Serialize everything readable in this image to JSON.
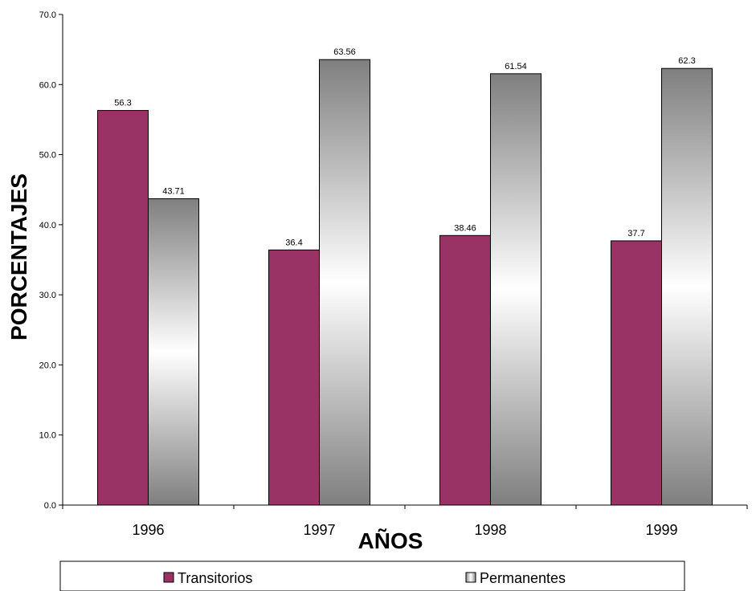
{
  "chart_data": {
    "type": "bar",
    "categories": [
      "1996",
      "1997",
      "1998",
      "1999"
    ],
    "series": [
      {
        "name": "Transitorios",
        "values": [
          56.3,
          36.4,
          38.46,
          37.7
        ],
        "color": "#993366",
        "style": "solid"
      },
      {
        "name": "Permanentes",
        "values": [
          43.71,
          63.56,
          61.54,
          62.3
        ],
        "color": "#808080",
        "style": "gradient"
      }
    ],
    "data_labels": [
      [
        "56.3",
        "36.4",
        "38.46",
        "37.7"
      ],
      [
        "43.71",
        "63.56",
        "61.54",
        "62.3"
      ]
    ],
    "xlabel": "AÑOS",
    "ylabel": "PORCENTAJES",
    "ylim": [
      0,
      70
    ],
    "yticks": [
      "0.0",
      "10.0",
      "20.0",
      "30.0",
      "40.0",
      "50.0",
      "60.0",
      "70.0"
    ],
    "grid": false,
    "legend_position": "bottom"
  }
}
